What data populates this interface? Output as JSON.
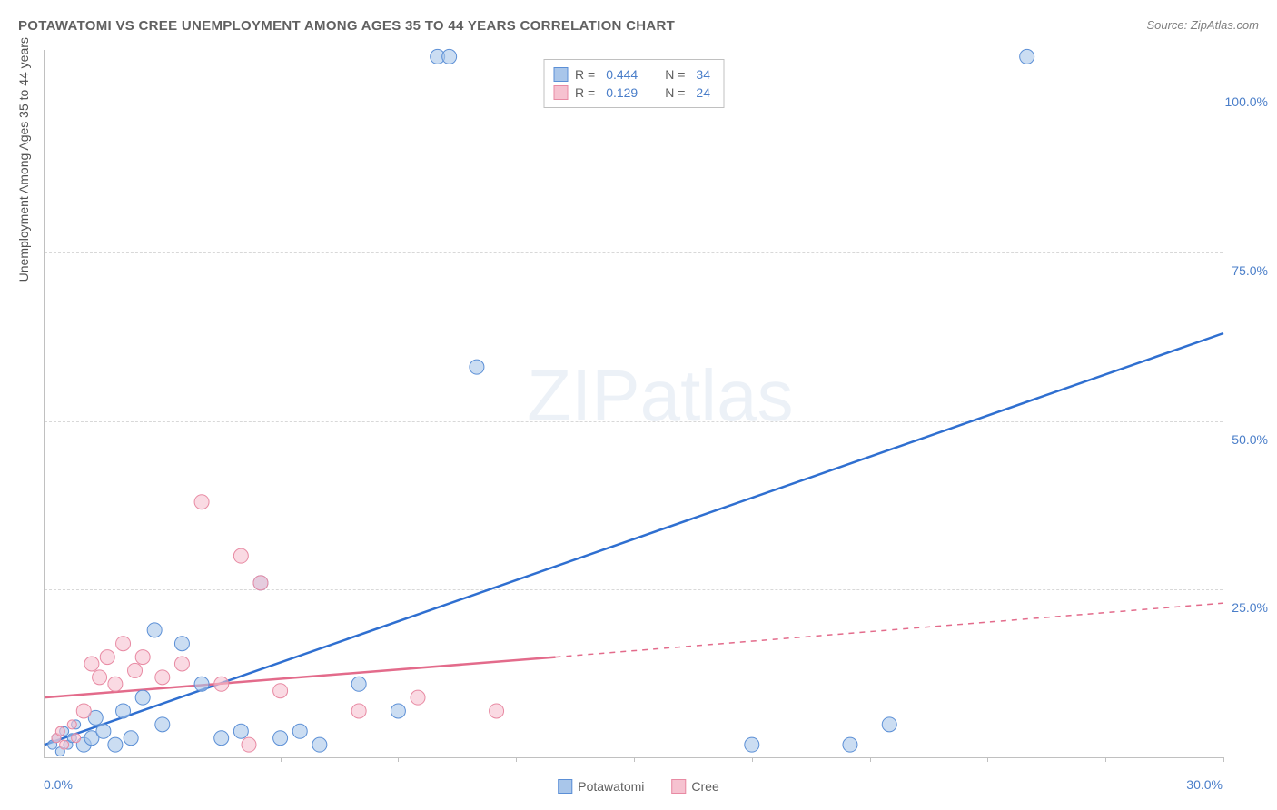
{
  "title": "POTAWATOMI VS CREE UNEMPLOYMENT AMONG AGES 35 TO 44 YEARS CORRELATION CHART",
  "source_label": "Source: ZipAtlas.com",
  "y_axis_label": "Unemployment Among Ages 35 to 44 years",
  "watermark": "ZIPatlas",
  "colors": {
    "series_blue_fill": "#a9c6ea",
    "series_blue_stroke": "#5b8fd6",
    "series_pink_fill": "#f6c2d0",
    "series_pink_stroke": "#e88aa3",
    "trend_blue": "#2f6fd0",
    "trend_pink": "#e36b8b",
    "grid": "#d8d8d8",
    "axis": "#c0c0c0",
    "tick_text": "#4a7ec9",
    "text": "#606060",
    "bg": "#ffffff"
  },
  "axes": {
    "xlim": [
      0,
      30
    ],
    "ylim": [
      0,
      105
    ],
    "y_ticks": [
      25,
      50,
      75,
      100
    ],
    "y_tick_labels": [
      "25.0%",
      "50.0%",
      "75.0%",
      "100.0%"
    ],
    "x_ticks": [
      0,
      3,
      6,
      9,
      12,
      15,
      18,
      21,
      24,
      27,
      30
    ],
    "x_origin_label": "0.0%",
    "x_end_label": "30.0%"
  },
  "r_legend": {
    "rows": [
      {
        "color_fill": "#a9c6ea",
        "color_stroke": "#5b8fd6",
        "r_label": "R =",
        "r_val": "0.444",
        "n_label": "N =",
        "n_val": "34"
      },
      {
        "color_fill": "#f6c2d0",
        "color_stroke": "#e88aa3",
        "r_label": "R =",
        "r_val": "0.129",
        "n_label": "N =",
        "n_val": "24"
      }
    ]
  },
  "bottom_legend": {
    "items": [
      {
        "color_fill": "#a9c6ea",
        "color_stroke": "#5b8fd6",
        "label": "Potawatomi"
      },
      {
        "color_fill": "#f6c2d0",
        "color_stroke": "#e88aa3",
        "label": "Cree"
      }
    ]
  },
  "chart": {
    "type": "scatter",
    "marker_radius": 8,
    "marker_radius_small": 5,
    "marker_opacity": 0.6,
    "trend_line_width": 2.5,
    "series": [
      {
        "name": "Potawatomi",
        "color_fill": "#a9c6ea",
        "color_stroke": "#5b8fd6",
        "points": [
          [
            0.2,
            2
          ],
          [
            0.3,
            3
          ],
          [
            0.4,
            1
          ],
          [
            0.5,
            4
          ],
          [
            0.6,
            2
          ],
          [
            0.7,
            3
          ],
          [
            0.8,
            5
          ],
          [
            1.0,
            2
          ],
          [
            1.2,
            3
          ],
          [
            1.3,
            6
          ],
          [
            1.5,
            4
          ],
          [
            1.8,
            2
          ],
          [
            2.0,
            7
          ],
          [
            2.2,
            3
          ],
          [
            2.5,
            9
          ],
          [
            2.8,
            19
          ],
          [
            3.0,
            5
          ],
          [
            3.5,
            17
          ],
          [
            4.0,
            11
          ],
          [
            4.5,
            3
          ],
          [
            5.0,
            4
          ],
          [
            5.5,
            26
          ],
          [
            6.0,
            3
          ],
          [
            6.5,
            4
          ],
          [
            7.0,
            2
          ],
          [
            8.0,
            11
          ],
          [
            9.0,
            7
          ],
          [
            10.0,
            104
          ],
          [
            10.3,
            104
          ],
          [
            11.0,
            58
          ],
          [
            18.0,
            2
          ],
          [
            20.5,
            2
          ],
          [
            21.5,
            5
          ],
          [
            25.0,
            104
          ]
        ],
        "trend": {
          "x1": 0,
          "y1": 2,
          "x2": 30,
          "y2": 63,
          "dash_from_x": 30
        }
      },
      {
        "name": "Cree",
        "color_fill": "#f6c2d0",
        "color_stroke": "#e88aa3",
        "points": [
          [
            0.3,
            3
          ],
          [
            0.4,
            4
          ],
          [
            0.5,
            2
          ],
          [
            0.7,
            5
          ],
          [
            0.8,
            3
          ],
          [
            1.0,
            7
          ],
          [
            1.2,
            14
          ],
          [
            1.4,
            12
          ],
          [
            1.6,
            15
          ],
          [
            1.8,
            11
          ],
          [
            2.0,
            17
          ],
          [
            2.3,
            13
          ],
          [
            2.5,
            15
          ],
          [
            3.0,
            12
          ],
          [
            3.5,
            14
          ],
          [
            4.0,
            38
          ],
          [
            4.5,
            11
          ],
          [
            5.0,
            30
          ],
          [
            5.2,
            2
          ],
          [
            5.5,
            26
          ],
          [
            6.0,
            10
          ],
          [
            8.0,
            7
          ],
          [
            9.5,
            9
          ],
          [
            11.5,
            7
          ]
        ],
        "trend": {
          "x1": 0,
          "y1": 9,
          "x2": 13,
          "y2": 15,
          "dash_from_x": 13,
          "dash_x2": 30,
          "dash_y2": 23
        }
      }
    ]
  }
}
